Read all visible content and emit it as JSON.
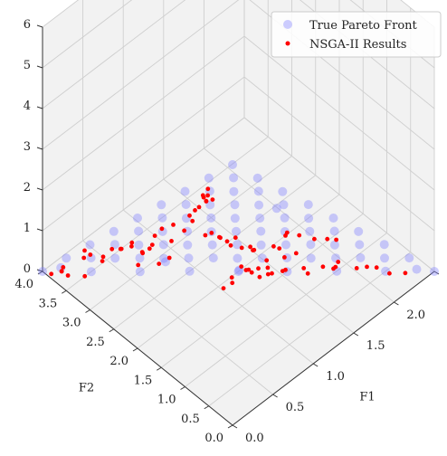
{
  "chart_data": {
    "type": "scatter",
    "projection": "3d",
    "title": "",
    "xlabel": "F1",
    "ylabel": "F2",
    "zlabel": "",
    "xlim": [
      0.0,
      2.5
    ],
    "ylim": [
      0.0,
      4.0
    ],
    "zlim": [
      0,
      6
    ],
    "xticks": [
      "0.0",
      "0.5",
      "1.0",
      "1.5",
      "2.0",
      "2.5"
    ],
    "yticks": [
      "0.0",
      "0.5",
      "1.0",
      "1.5",
      "2.0",
      "2.5",
      "3.0",
      "3.5",
      "4.0"
    ],
    "zticks": [
      "0",
      "1",
      "2",
      "3",
      "4",
      "5",
      "6"
    ],
    "grid": true,
    "legend": "top-right",
    "series": [
      {
        "name": "True Pareto Front",
        "color": "#7b7bff",
        "marker": "circle",
        "points": [
          [
            0,
            0,
            6.4
          ],
          [
            0,
            0.5,
            5.6
          ],
          [
            0,
            1,
            4.8
          ],
          [
            0,
            1.5,
            4
          ],
          [
            0,
            2,
            3.2
          ],
          [
            0,
            2.5,
            2.4
          ],
          [
            0,
            3,
            1.6
          ],
          [
            0,
            3.5,
            0.8
          ],
          [
            0,
            4,
            0
          ],
          [
            0.31,
            0,
            5.6
          ],
          [
            0.31,
            0.5,
            4.8
          ],
          [
            0.31,
            1,
            4
          ],
          [
            0.31,
            1.5,
            3.2
          ],
          [
            0.31,
            2,
            2.4
          ],
          [
            0.31,
            2.5,
            1.6
          ],
          [
            0.31,
            3,
            0.8
          ],
          [
            0.31,
            3.5,
            0
          ],
          [
            0.62,
            0,
            4.8
          ],
          [
            0.62,
            0.5,
            4
          ],
          [
            0.62,
            1,
            3.2
          ],
          [
            0.62,
            1.5,
            2.4
          ],
          [
            0.62,
            2,
            1.6
          ],
          [
            0.62,
            2.5,
            0.8
          ],
          [
            0.62,
            3,
            0
          ],
          [
            0.94,
            0,
            4
          ],
          [
            0.94,
            0.5,
            3.2
          ],
          [
            0.94,
            1,
            2.4
          ],
          [
            0.94,
            1.5,
            1.6
          ],
          [
            0.94,
            2,
            0.8
          ],
          [
            0.94,
            2.5,
            0
          ],
          [
            1.25,
            0,
            3.2
          ],
          [
            1.25,
            0.5,
            2.4
          ],
          [
            1.25,
            1,
            1.6
          ],
          [
            1.25,
            1.5,
            0.8
          ],
          [
            1.25,
            2,
            0
          ],
          [
            1.56,
            0,
            2.4
          ],
          [
            1.56,
            0.5,
            1.6
          ],
          [
            1.56,
            1,
            0.8
          ],
          [
            1.56,
            1.5,
            0
          ],
          [
            1.88,
            0,
            1.6
          ],
          [
            1.88,
            0.5,
            0.8
          ],
          [
            1.88,
            1,
            0
          ],
          [
            2.19,
            0,
            0.8
          ],
          [
            2.19,
            0.5,
            0
          ],
          [
            2.5,
            0,
            0
          ],
          [
            0.16,
            0.25,
            5.6
          ],
          [
            0.16,
            0.75,
            4.8
          ],
          [
            0.16,
            1.25,
            4
          ],
          [
            0.16,
            1.75,
            3.2
          ],
          [
            0.16,
            2.25,
            2.4
          ],
          [
            0.16,
            2.75,
            1.6
          ],
          [
            0.16,
            3.25,
            0.8
          ],
          [
            0.47,
            0.25,
            4.8
          ],
          [
            0.47,
            0.75,
            4
          ],
          [
            0.47,
            1.25,
            3.2
          ],
          [
            0.47,
            1.75,
            2.4
          ],
          [
            0.47,
            2.25,
            1.6
          ],
          [
            0.47,
            2.75,
            0.8
          ],
          [
            0.78,
            0.25,
            4
          ],
          [
            0.78,
            0.75,
            3.2
          ],
          [
            0.78,
            1.25,
            2.4
          ],
          [
            0.78,
            1.75,
            1.6
          ],
          [
            0.78,
            2.25,
            0.8
          ],
          [
            1.09,
            0.25,
            3.2
          ],
          [
            1.09,
            0.75,
            2.4
          ],
          [
            1.09,
            1.25,
            1.6
          ],
          [
            1.09,
            1.75,
            0.8
          ],
          [
            1.41,
            0.25,
            2.4
          ],
          [
            1.41,
            0.75,
            1.6
          ],
          [
            1.41,
            1.25,
            0.8
          ],
          [
            1.72,
            0.25,
            1.6
          ],
          [
            1.72,
            0.75,
            0.8
          ],
          [
            2.03,
            0.25,
            0.8
          ],
          [
            2.34,
            0.1,
            0.2
          ],
          [
            0.05,
            3.7,
            0.3
          ],
          [
            0.7,
            2.6,
            0.5
          ],
          [
            1.2,
            1.9,
            0.2
          ],
          [
            0.9,
            0.6,
            3.4
          ]
        ]
      },
      {
        "name": "NSGA-II Results",
        "color": "#ff0000",
        "marker": "dot",
        "points": [
          [
            0.34,
            1.2,
            4
          ],
          [
            0.37,
            1.15,
            4
          ],
          [
            0.38,
            1.2,
            3.8
          ],
          [
            0.4,
            1.1,
            3.9
          ],
          [
            0.36,
            1.22,
            3.9
          ],
          [
            0.39,
            1.18,
            4.1
          ],
          [
            0.41,
            1.25,
            3.7
          ],
          [
            0.35,
            1.3,
            3.6
          ],
          [
            0.3,
            1.3,
            3.6
          ],
          [
            0.62,
            0.6,
            2.8
          ],
          [
            0.58,
            1.1,
            2.6
          ],
          [
            0.66,
            1.4,
            2.3
          ],
          [
            0.48,
            1.72,
            2.8
          ],
          [
            0.52,
            1.9,
            2.2
          ],
          [
            0.42,
            2.0,
            2.0
          ],
          [
            0.36,
            2.1,
            2.3
          ],
          [
            0.3,
            2.2,
            1.9
          ],
          [
            0.56,
            2.2,
            2.0
          ],
          [
            0.68,
            2.0,
            2.1
          ],
          [
            0.74,
            1.7,
            2.0
          ],
          [
            0.79,
            1.6,
            1.9
          ],
          [
            0.86,
            1.5,
            1.7
          ],
          [
            0.88,
            1.3,
            1.8
          ],
          [
            0.92,
            1.5,
            1.8
          ],
          [
            0.81,
            1.95,
            1.6
          ],
          [
            0.42,
            2.35,
            1.8
          ],
          [
            0.27,
            2.35,
            1.6
          ],
          [
            0.22,
            2.5,
            1.7
          ],
          [
            0.5,
            2.75,
            0.9
          ],
          [
            0.36,
            2.95,
            1.0
          ],
          [
            0.46,
            2.9,
            1.05
          ],
          [
            0.33,
            3.1,
            0.9
          ],
          [
            0.29,
            2.85,
            1.2
          ],
          [
            0.42,
            2.7,
            0.75
          ],
          [
            0.59,
            2.75,
            0.85
          ],
          [
            0.53,
            2.45,
            0.85
          ],
          [
            0.66,
            2.45,
            0.8
          ],
          [
            0.27,
            3.2,
            0.6
          ],
          [
            0.31,
            3.25,
            0.6
          ],
          [
            0.18,
            3.3,
            0.8
          ],
          [
            0.13,
            3.35,
            0.75
          ],
          [
            0.08,
            3.25,
            1.1
          ],
          [
            0.05,
            3.55,
            0.25
          ],
          [
            0.02,
            3.6,
            0.45
          ],
          [
            0.06,
            3.7,
            0.2
          ],
          [
            0.09,
            3.75,
            0.1
          ],
          [
            0.02,
            3.85,
            0.05
          ],
          [
            0.2,
            3.45,
            0.1
          ],
          [
            0.83,
            1.6,
            0.6
          ],
          [
            0.88,
            1.5,
            0.75
          ],
          [
            1.05,
            1.6,
            0.8
          ],
          [
            1.15,
            1.55,
            0.55
          ],
          [
            1.02,
            1.45,
            0.9
          ],
          [
            1.1,
            1.3,
            0.75
          ],
          [
            1.2,
            1.7,
            0.4
          ],
          [
            1.08,
            1.85,
            0.25
          ],
          [
            1.32,
            1.7,
            0.25
          ],
          [
            1.45,
            1.35,
            0.35
          ],
          [
            1.4,
            1.55,
            0.15
          ],
          [
            1.29,
            1.45,
            0.55
          ],
          [
            1.35,
            1.2,
            0.95
          ],
          [
            1.5,
            1.05,
            0.6
          ],
          [
            1.58,
            1.1,
            0.3
          ],
          [
            1.75,
            0.85,
            0.4
          ],
          [
            1.65,
            0.9,
            0.55
          ],
          [
            1.95,
            0.7,
            0.25
          ],
          [
            1.72,
            0.7,
            0.75
          ],
          [
            1.6,
            0.55,
            0.95
          ],
          [
            1.93,
            0.45,
            0.55
          ],
          [
            2.05,
            0.45,
            0.35
          ],
          [
            2.15,
            0.35,
            0.15
          ],
          [
            2.27,
            0.22,
            0.1
          ],
          [
            1.15,
            0.9,
            1.2
          ],
          [
            1.0,
            0.95,
            1.3
          ],
          [
            1.22,
            0.35,
            2.4
          ],
          [
            1.35,
            0.3,
            2.25
          ],
          [
            1.12,
            0.5,
            2.5
          ],
          [
            1.05,
            0.8,
            2.0
          ],
          [
            1.2,
            0.7,
            1.75
          ],
          [
            0.95,
            0.75,
            2.25
          ],
          [
            1.0,
            0.55,
            2.7
          ],
          [
            0.95,
            0.5,
            2.75
          ],
          [
            1.45,
            0.28,
            2.1
          ],
          [
            0.9,
            1.1,
            1.9
          ],
          [
            0.75,
            0.9,
            2.4
          ],
          [
            1.1,
            1.15,
            1.3
          ]
        ]
      }
    ]
  }
}
